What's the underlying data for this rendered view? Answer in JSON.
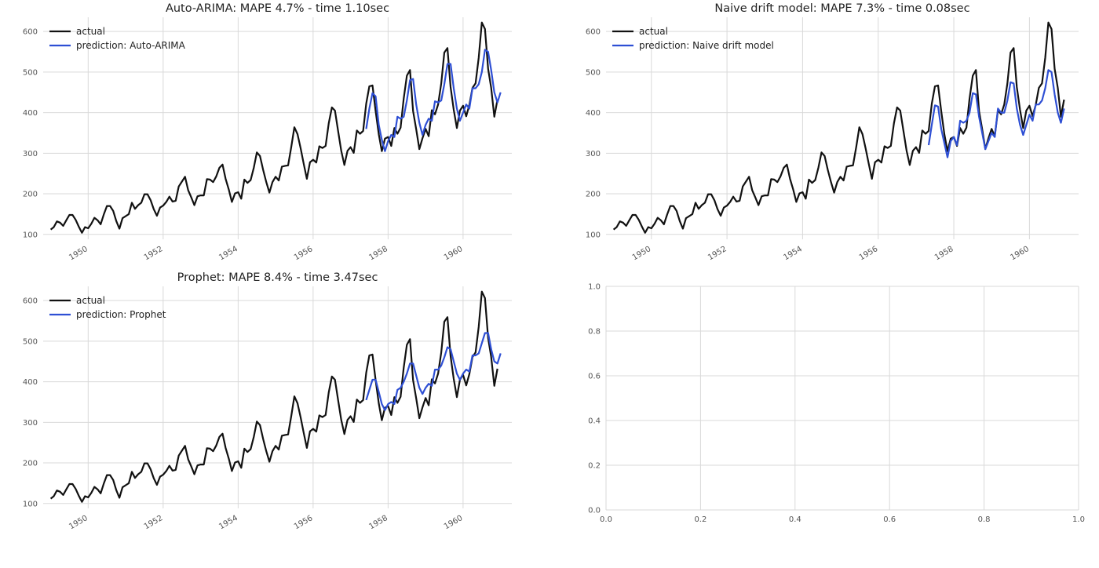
{
  "actual_label": "actual",
  "colors": {
    "actual": "#111111",
    "prediction": "#2e4fd4"
  },
  "chart_data": [
    {
      "type": "line",
      "title": "Auto-ARIMA: MAPE 4.7% - time 1.10sec",
      "legend": {
        "placement": "top-left",
        "entries": [
          "actual",
          "prediction: Auto-ARIMA"
        ]
      },
      "grid": true,
      "xlabel": "",
      "ylabel": "",
      "xlim": [
        1948.8,
        1961.3
      ],
      "ylim": [
        88,
        635
      ],
      "x_ticks": [
        1950,
        1952,
        1954,
        1956,
        1958,
        1960
      ],
      "x_tick_labels": [
        "1950",
        "1952",
        "1954",
        "1956",
        "1958",
        "1960"
      ],
      "y_ticks": [
        100,
        200,
        300,
        400,
        500,
        600
      ],
      "y_tick_labels": [
        "100",
        "200",
        "300",
        "400",
        "500",
        "600"
      ],
      "prediction": {
        "name": "prediction: Auto-ARIMA",
        "start": "1957-06",
        "values": [
          360,
          410,
          448,
          440,
          370,
          333,
          305,
          330,
          345,
          340,
          390,
          385,
          390,
          430,
          480,
          483,
          420,
          375,
          345,
          370,
          385,
          380,
          428,
          425,
          430,
          470,
          520,
          520,
          460,
          410,
          380,
          400,
          420,
          410,
          460,
          460,
          470,
          500,
          555,
          550,
          505,
          450,
          425,
          450
        ]
      }
    },
    {
      "type": "line",
      "title": "Naive drift model: MAPE 7.3% - time 0.08sec",
      "legend": {
        "placement": "top-left",
        "entries": [
          "actual",
          "prediction: Naive drift model"
        ]
      },
      "grid": true,
      "xlabel": "",
      "ylabel": "",
      "xlim": [
        1948.8,
        1961.3
      ],
      "ylim": [
        88,
        635
      ],
      "x_ticks": [
        1950,
        1952,
        1954,
        1956,
        1958,
        1960
      ],
      "x_tick_labels": [
        "1950",
        "1952",
        "1954",
        "1956",
        "1958",
        "1960"
      ],
      "y_ticks": [
        100,
        200,
        300,
        400,
        500,
        600
      ],
      "y_tick_labels": [
        "100",
        "200",
        "300",
        "400",
        "500",
        "600"
      ],
      "prediction": {
        "name": "prediction: Naive drift model",
        "start": "1957-05",
        "values": [
          320,
          370,
          418,
          415,
          360,
          325,
          290,
          330,
          340,
          320,
          380,
          375,
          380,
          400,
          448,
          445,
          390,
          350,
          310,
          330,
          350,
          340,
          410,
          400,
          400,
          430,
          475,
          472,
          410,
          370,
          345,
          370,
          395,
          380,
          420,
          420,
          430,
          460,
          505,
          500,
          445,
          400,
          375,
          410
        ]
      }
    },
    {
      "type": "line",
      "title": "Prophet: MAPE 8.4% - time 3.47sec",
      "legend": {
        "placement": "top-left",
        "entries": [
          "actual",
          "prediction: Prophet"
        ]
      },
      "grid": true,
      "xlabel": "",
      "ylabel": "",
      "xlim": [
        1948.8,
        1961.3
      ],
      "ylim": [
        88,
        635
      ],
      "x_ticks": [
        1950,
        1952,
        1954,
        1956,
        1958,
        1960
      ],
      "x_tick_labels": [
        "1950",
        "1952",
        "1954",
        "1956",
        "1958",
        "1960"
      ],
      "y_ticks": [
        100,
        200,
        300,
        400,
        500,
        600
      ],
      "y_tick_labels": [
        "100",
        "200",
        "300",
        "400",
        "500",
        "600"
      ],
      "prediction": {
        "name": "prediction: Prophet",
        "start": "1957-06",
        "values": [
          355,
          380,
          405,
          405,
          375,
          345,
          330,
          345,
          350,
          345,
          380,
          385,
          400,
          420,
          445,
          445,
          415,
          385,
          370,
          385,
          395,
          390,
          430,
          430,
          440,
          460,
          485,
          480,
          450,
          420,
          405,
          420,
          430,
          425,
          465,
          465,
          470,
          495,
          520,
          520,
          480,
          450,
          445,
          470
        ]
      }
    },
    {
      "type": "line",
      "title": "",
      "legend": {
        "placement": "none",
        "entries": []
      },
      "grid": true,
      "xlabel": "",
      "ylabel": "",
      "xlim": [
        0.0,
        1.0
      ],
      "ylim": [
        0.0,
        1.0
      ],
      "x_ticks": [
        0.0,
        0.2,
        0.4,
        0.6,
        0.8,
        1.0
      ],
      "x_tick_labels": [
        "0.0",
        "0.2",
        "0.4",
        "0.6",
        "0.8",
        "1.0"
      ],
      "y_ticks": [
        0.0,
        0.2,
        0.4,
        0.6,
        0.8,
        1.0
      ],
      "y_tick_labels": [
        "0.0",
        "0.2",
        "0.4",
        "0.6",
        "0.8",
        "1.0"
      ],
      "prediction": null
    }
  ],
  "actual_series": {
    "name": "actual",
    "start": "1949-01",
    "values": [
      112,
      118,
      132,
      129,
      121,
      135,
      148,
      148,
      136,
      119,
      104,
      118,
      115,
      126,
      141,
      135,
      125,
      149,
      170,
      170,
      158,
      133,
      114,
      140,
      145,
      150,
      178,
      163,
      172,
      178,
      199,
      199,
      184,
      162,
      146,
      166,
      171,
      180,
      193,
      181,
      183,
      218,
      230,
      242,
      209,
      191,
      172,
      194,
      196,
      196,
      236,
      235,
      229,
      243,
      264,
      272,
      237,
      211,
      180,
      201,
      204,
      188,
      235,
      227,
      234,
      264,
      302,
      293,
      259,
      229,
      203,
      229,
      242,
      233,
      267,
      269,
      270,
      315,
      364,
      347,
      312,
      274,
      237,
      278,
      284,
      277,
      317,
      313,
      318,
      374,
      413,
      405,
      355,
      306,
      271,
      306,
      315,
      301,
      356,
      348,
      355,
      422,
      465,
      467,
      404,
      347,
      305,
      336,
      340,
      318,
      362,
      348,
      363,
      435,
      491,
      505,
      404,
      359,
      310,
      337,
      360,
      342,
      406,
      396,
      420,
      472,
      548,
      559,
      463,
      407,
      362,
      405,
      417,
      391,
      419,
      461,
      472,
      535,
      622,
      606,
      508,
      461,
      390,
      432
    ]
  }
}
